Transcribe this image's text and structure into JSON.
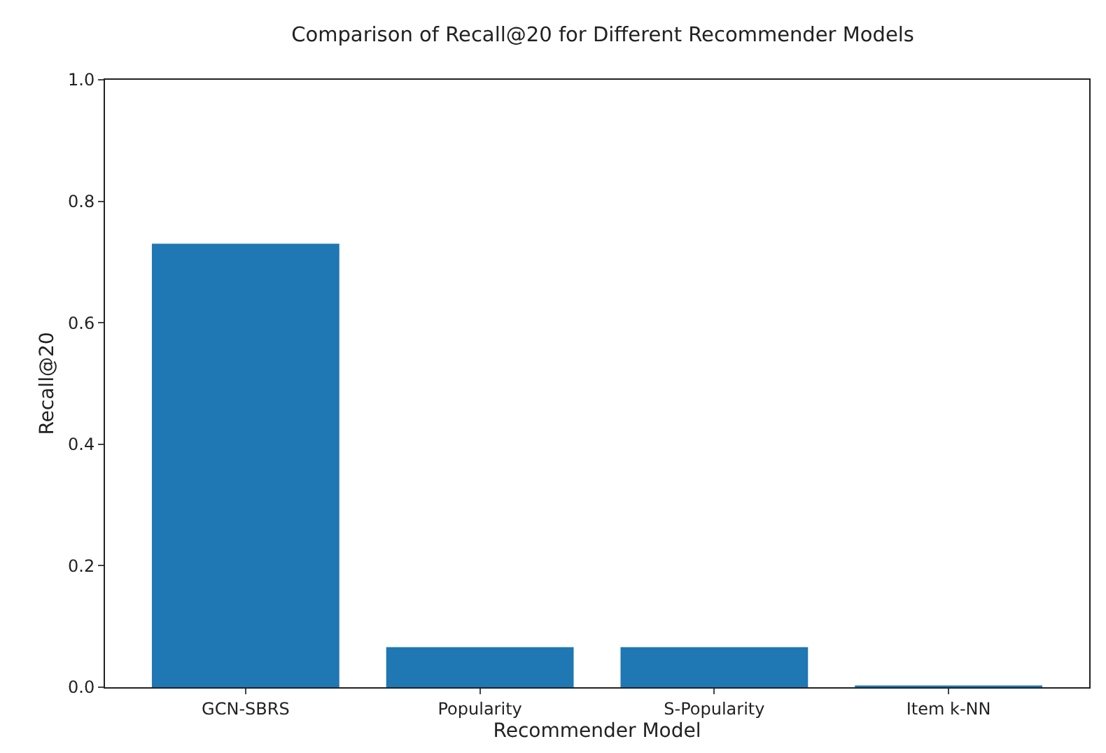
{
  "chart_data": {
    "type": "bar",
    "title": "Comparison of Recall@20 for Different Recommender Models",
    "xlabel": "Recommender Model",
    "ylabel": "Recall@20",
    "categories": [
      "GCN-SBRS",
      "Popularity",
      "S-Popularity",
      "Item k-NN"
    ],
    "values": [
      0.73,
      0.066,
      0.066,
      0.003
    ],
    "color": "#1f77b4",
    "ylim": [
      0,
      1
    ],
    "yticks": [
      {
        "value": 0,
        "label": "0.0"
      },
      {
        "value": 0.2,
        "label": "0.2"
      },
      {
        "value": 0.4,
        "label": "0.4"
      },
      {
        "value": 0.6,
        "label": "0.6"
      },
      {
        "value": 0.8,
        "label": "0.8"
      },
      {
        "value": 1,
        "label": "1.0"
      }
    ],
    "grid": false
  }
}
